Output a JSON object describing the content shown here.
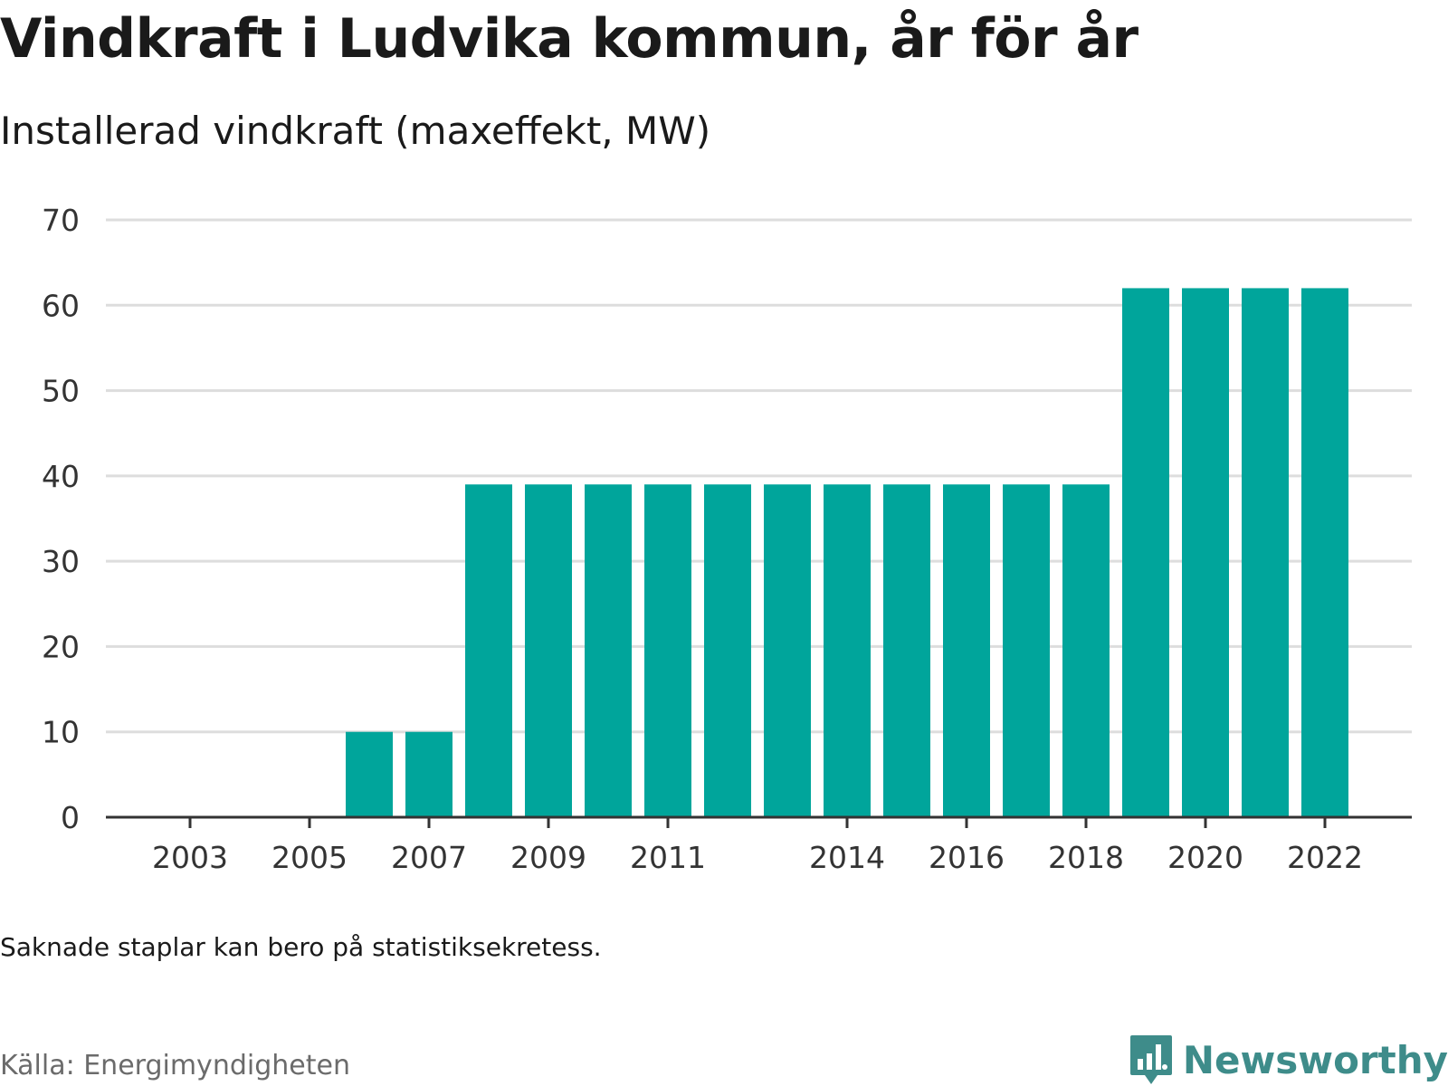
{
  "title": "Vindkraft i Ludvika kommun, år för år",
  "subtitle": "Installerad vindkraft (maxeffekt, MW)",
  "note": "Saknade staplar kan bero på statistiksekretess.",
  "source": "Källa: Energimyndigheten",
  "brand": {
    "name": "Newsworthy",
    "icon": "bar-chart-speech-bubble-icon",
    "color": "#3e8c8a"
  },
  "colors": {
    "bar": "#00a59b",
    "grid": "#dddddd",
    "axis": "#333333"
  },
  "chart_data": {
    "type": "bar",
    "categories": [
      "2002",
      "2003",
      "2004",
      "2005",
      "2006",
      "2007",
      "2008",
      "2009",
      "2010",
      "2011",
      "2012",
      "2013",
      "2014",
      "2015",
      "2016",
      "2017",
      "2018",
      "2019",
      "2020",
      "2021",
      "2022"
    ],
    "values": [
      0,
      0,
      0,
      0,
      10,
      10,
      39,
      39,
      39,
      39,
      39,
      39,
      39,
      39,
      39,
      39,
      39,
      62,
      62,
      62,
      62
    ],
    "x_tick_labels": [
      "2003",
      "2005",
      "2007",
      "2009",
      "2011",
      "2014",
      "2016",
      "2018",
      "2020",
      "2022"
    ],
    "y_ticks": [
      0,
      10,
      20,
      30,
      40,
      50,
      60,
      70
    ],
    "ylim": [
      0,
      70
    ],
    "grid": true,
    "legend": "none"
  }
}
